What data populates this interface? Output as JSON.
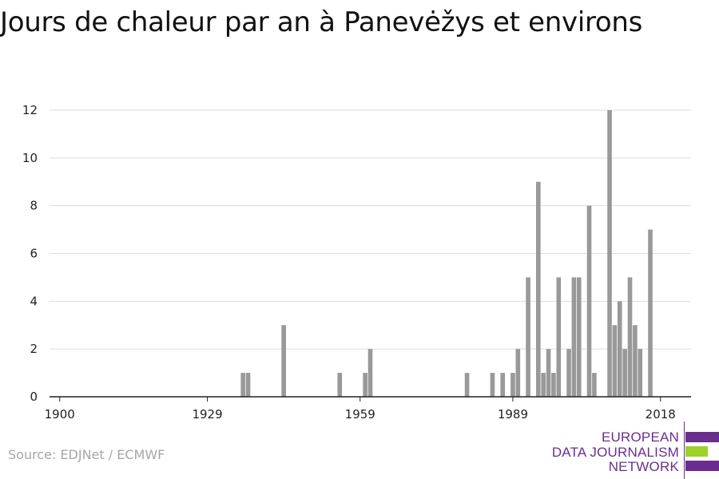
{
  "title": "Jours de chaleur par an à Panevėžys et environs",
  "source": "Source: EDJNet / ECMWF",
  "logo": {
    "lines": [
      "EUROPEAN",
      "DATA JOURNALISM",
      "NETWORK"
    ],
    "colors": {
      "purple": "#6a2e8f",
      "green": "#9bd32b"
    }
  },
  "chart_data": {
    "type": "bar",
    "title": "Jours de chaleur par an à Panevėžys et environs",
    "xlabel": "",
    "ylabel": "",
    "xlim": [
      1898,
      2024
    ],
    "ylim": [
      0,
      12
    ],
    "x_ticks": [
      1900,
      1929,
      1959,
      1989,
      2018
    ],
    "y_ticks": [
      0,
      2,
      4,
      6,
      8,
      10,
      12
    ],
    "grid": true,
    "bar_color": "#999999",
    "x": [
      1936,
      1937,
      1944,
      1955,
      1960,
      1961,
      1980,
      1985,
      1987,
      1989,
      1990,
      1992,
      1994,
      1995,
      1996,
      1997,
      1998,
      2000,
      2001,
      2002,
      2004,
      2005,
      2008,
      2009,
      2010,
      2011,
      2012,
      2013,
      2014,
      2016
    ],
    "values": [
      1,
      1,
      3,
      1,
      1,
      2,
      1,
      1,
      1,
      1,
      2,
      5,
      9,
      1,
      2,
      1,
      5,
      2,
      5,
      5,
      8,
      1,
      12,
      3,
      4,
      2,
      5,
      3,
      2,
      7
    ]
  }
}
